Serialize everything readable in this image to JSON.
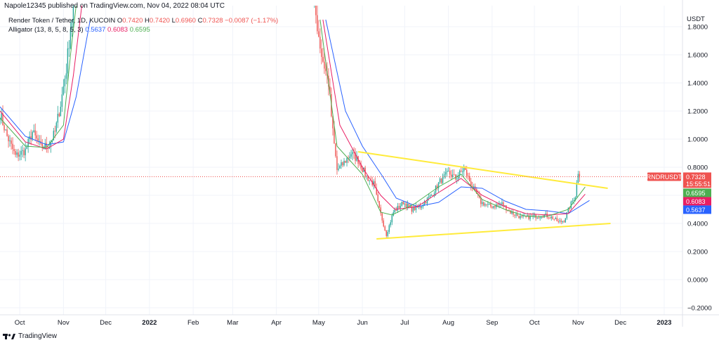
{
  "header": {
    "published": "Napole12345 published on TradingView.com, Nov 04, 2022 08:04 UTC"
  },
  "legend": {
    "symbol": "Render Token / Tether, 1D, KUCOIN",
    "o_label": "O",
    "o": "0.7420",
    "h_label": "H",
    "h": "0.7420",
    "l_label": "L",
    "l": "0.6960",
    "c_label": "C",
    "c": "0.7328",
    "change": "−0.0087 (−1.17%)",
    "indicator": "Alligator (13, 8, 5, 8, 5, 3)",
    "jaw": "0.5637",
    "teeth": "0.6083",
    "lips": "0.6595"
  },
  "footer": {
    "brand": "TradingView"
  },
  "colors": {
    "up": "#26a69a",
    "down": "#ef5350",
    "jaw": "#2962ff",
    "teeth": "#e91e63",
    "lips": "#4caf50",
    "trendline": "#ffeb3b",
    "price_label": "#ef5350"
  },
  "chart_data": {
    "type": "candlestick",
    "y_unit": "USDT",
    "ylim": [
      -0.25,
      1.95
    ],
    "y_ticks": [
      "1.8000",
      "1.6000",
      "1.4000",
      "1.2000",
      "1.0000",
      "0.8000",
      "0.6000",
      "0.4000",
      "0.2000",
      "0.0000",
      "−0.2000"
    ],
    "y_tick_values": [
      1.8,
      1.6,
      1.4,
      1.2,
      1.0,
      0.8,
      0.6,
      0.4,
      0.2,
      0.0,
      -0.2
    ],
    "x_range": [
      "2021-09-17",
      "2023-01-14"
    ],
    "x_ticks": [
      {
        "label": "Oct",
        "date": "2021-10-01"
      },
      {
        "label": "Nov",
        "date": "2021-11-01"
      },
      {
        "label": "Dec",
        "date": "2021-12-01"
      },
      {
        "label": "2022",
        "date": "2022-01-01"
      },
      {
        "label": "Feb",
        "date": "2022-02-01"
      },
      {
        "label": "Mar",
        "date": "2022-03-01"
      },
      {
        "label": "Apr",
        "date": "2022-04-01"
      },
      {
        "label": "May",
        "date": "2022-05-01"
      },
      {
        "label": "Jun",
        "date": "2022-06-01"
      },
      {
        "label": "Jul",
        "date": "2022-07-01"
      },
      {
        "label": "Aug",
        "date": "2022-08-01"
      },
      {
        "label": "Sep",
        "date": "2022-09-01"
      },
      {
        "label": "Oct",
        "date": "2022-10-01"
      },
      {
        "label": "Nov",
        "date": "2022-11-01"
      },
      {
        "label": "Dec",
        "date": "2022-12-01"
      },
      {
        "label": "2023",
        "date": "2023-01-01"
      }
    ],
    "price_path": [
      [
        "2021-09-17",
        1.18
      ],
      [
        "2021-09-22",
        1.02
      ],
      [
        "2021-09-28",
        0.88
      ],
      [
        "2021-10-05",
        0.92
      ],
      [
        "2021-10-10",
        1.05
      ],
      [
        "2021-10-16",
        0.94
      ],
      [
        "2021-10-22",
        0.96
      ],
      [
        "2021-10-26",
        1.05
      ],
      [
        "2021-10-30",
        1.25
      ],
      [
        "2021-11-03",
        1.5
      ],
      [
        "2021-11-06",
        1.8
      ],
      [
        "2021-11-09",
        2.0
      ],
      [
        "2022-04-28",
        1.95
      ],
      [
        "2022-05-03",
        1.6
      ],
      [
        "2022-05-08",
        1.4
      ],
      [
        "2022-05-11",
        1.05
      ],
      [
        "2022-05-14",
        0.78
      ],
      [
        "2022-05-18",
        0.82
      ],
      [
        "2022-05-24",
        0.9
      ],
      [
        "2022-05-29",
        0.85
      ],
      [
        "2022-06-04",
        0.73
      ],
      [
        "2022-06-09",
        0.68
      ],
      [
        "2022-06-13",
        0.5
      ],
      [
        "2022-06-18",
        0.32
      ],
      [
        "2022-06-23",
        0.48
      ],
      [
        "2022-06-30",
        0.55
      ],
      [
        "2022-07-06",
        0.5
      ],
      [
        "2022-07-12",
        0.52
      ],
      [
        "2022-07-20",
        0.6
      ],
      [
        "2022-07-26",
        0.7
      ],
      [
        "2022-08-01",
        0.76
      ],
      [
        "2022-08-06",
        0.72
      ],
      [
        "2022-08-12",
        0.79
      ],
      [
        "2022-08-18",
        0.66
      ],
      [
        "2022-08-24",
        0.55
      ],
      [
        "2022-08-31",
        0.52
      ],
      [
        "2022-09-08",
        0.54
      ],
      [
        "2022-09-14",
        0.48
      ],
      [
        "2022-09-22",
        0.44
      ],
      [
        "2022-09-30",
        0.45
      ],
      [
        "2022-10-08",
        0.46
      ],
      [
        "2022-10-14",
        0.44
      ],
      [
        "2022-10-18",
        0.41
      ],
      [
        "2022-10-22",
        0.42
      ],
      [
        "2022-10-26",
        0.52
      ],
      [
        "2022-10-30",
        0.6
      ],
      [
        "2022-11-01",
        0.77
      ],
      [
        "2022-11-03",
        0.73
      ]
    ],
    "alligator": {
      "jaw": [
        [
          "2021-09-17",
          1.23
        ],
        [
          "2021-10-05",
          1.02
        ],
        [
          "2021-10-20",
          0.96
        ],
        [
          "2021-11-01",
          0.98
        ],
        [
          "2021-11-10",
          1.3
        ],
        [
          "2021-11-20",
          1.85
        ],
        [
          "2022-05-06",
          1.85
        ],
        [
          "2022-05-20",
          1.2
        ],
        [
          "2022-06-01",
          0.95
        ],
        [
          "2022-06-15",
          0.74
        ],
        [
          "2022-06-25",
          0.58
        ],
        [
          "2022-07-10",
          0.52
        ],
        [
          "2022-07-25",
          0.55
        ],
        [
          "2022-08-10",
          0.66
        ],
        [
          "2022-08-25",
          0.65
        ],
        [
          "2022-09-10",
          0.56
        ],
        [
          "2022-09-25",
          0.5
        ],
        [
          "2022-10-10",
          0.49
        ],
        [
          "2022-10-25",
          0.47
        ],
        [
          "2022-11-09",
          0.5637
        ]
      ],
      "teeth": [
        [
          "2021-09-17",
          1.2
        ],
        [
          "2021-10-05",
          0.98
        ],
        [
          "2021-10-20",
          0.93
        ],
        [
          "2021-11-01",
          1.0
        ],
        [
          "2021-11-08",
          1.45
        ],
        [
          "2021-11-14",
          1.95
        ],
        [
          "2022-05-04",
          1.85
        ],
        [
          "2022-05-16",
          1.1
        ],
        [
          "2022-06-01",
          0.8
        ],
        [
          "2022-06-14",
          0.6
        ],
        [
          "2022-06-24",
          0.5
        ],
        [
          "2022-07-10",
          0.52
        ],
        [
          "2022-07-25",
          0.62
        ],
        [
          "2022-08-10",
          0.72
        ],
        [
          "2022-08-25",
          0.6
        ],
        [
          "2022-09-10",
          0.52
        ],
        [
          "2022-09-25",
          0.47
        ],
        [
          "2022-10-10",
          0.46
        ],
        [
          "2022-10-25",
          0.47
        ],
        [
          "2022-11-06",
          0.6083
        ]
      ],
      "lips": [
        [
          "2021-09-17",
          1.15
        ],
        [
          "2021-10-05",
          0.95
        ],
        [
          "2021-10-20",
          0.94
        ],
        [
          "2021-11-01",
          1.1
        ],
        [
          "2021-11-06",
          1.6
        ],
        [
          "2021-11-10",
          1.95
        ],
        [
          "2022-05-02",
          1.85
        ],
        [
          "2022-05-14",
          0.95
        ],
        [
          "2022-06-01",
          0.75
        ],
        [
          "2022-06-14",
          0.48
        ],
        [
          "2022-06-22",
          0.46
        ],
        [
          "2022-07-08",
          0.54
        ],
        [
          "2022-07-25",
          0.66
        ],
        [
          "2022-08-10",
          0.75
        ],
        [
          "2022-08-25",
          0.57
        ],
        [
          "2022-09-10",
          0.5
        ],
        [
          "2022-09-25",
          0.45
        ],
        [
          "2022-10-10",
          0.45
        ],
        [
          "2022-10-25",
          0.5
        ],
        [
          "2022-11-06",
          0.6595
        ]
      ]
    },
    "trendlines": [
      {
        "from": [
          "2022-05-29",
          0.91
        ],
        "to": [
          "2022-11-22",
          0.65
        ]
      },
      {
        "from": [
          "2022-06-11",
          0.29
        ],
        "to": [
          "2022-11-24",
          0.4
        ]
      }
    ],
    "last_price_line": 0.7328,
    "price_labels": [
      {
        "label": "RNDRUSDT",
        "kind": "symbol",
        "value": 0.7328,
        "color": "#ef5350"
      },
      {
        "label": "0.7328",
        "kind": "price",
        "value": 0.7328,
        "color": "#ef5350"
      },
      {
        "label": "15:55:51",
        "kind": "countdown",
        "value": 0.7328,
        "color": "#ef5350"
      },
      {
        "label": "0.6595",
        "kind": "lips",
        "value": 0.6595,
        "color": "#4caf50"
      },
      {
        "label": "0.6083",
        "kind": "teeth",
        "value": 0.6083,
        "color": "#e91e63"
      },
      {
        "label": "0.5637",
        "kind": "jaw",
        "value": 0.5637,
        "color": "#2962ff"
      }
    ]
  }
}
